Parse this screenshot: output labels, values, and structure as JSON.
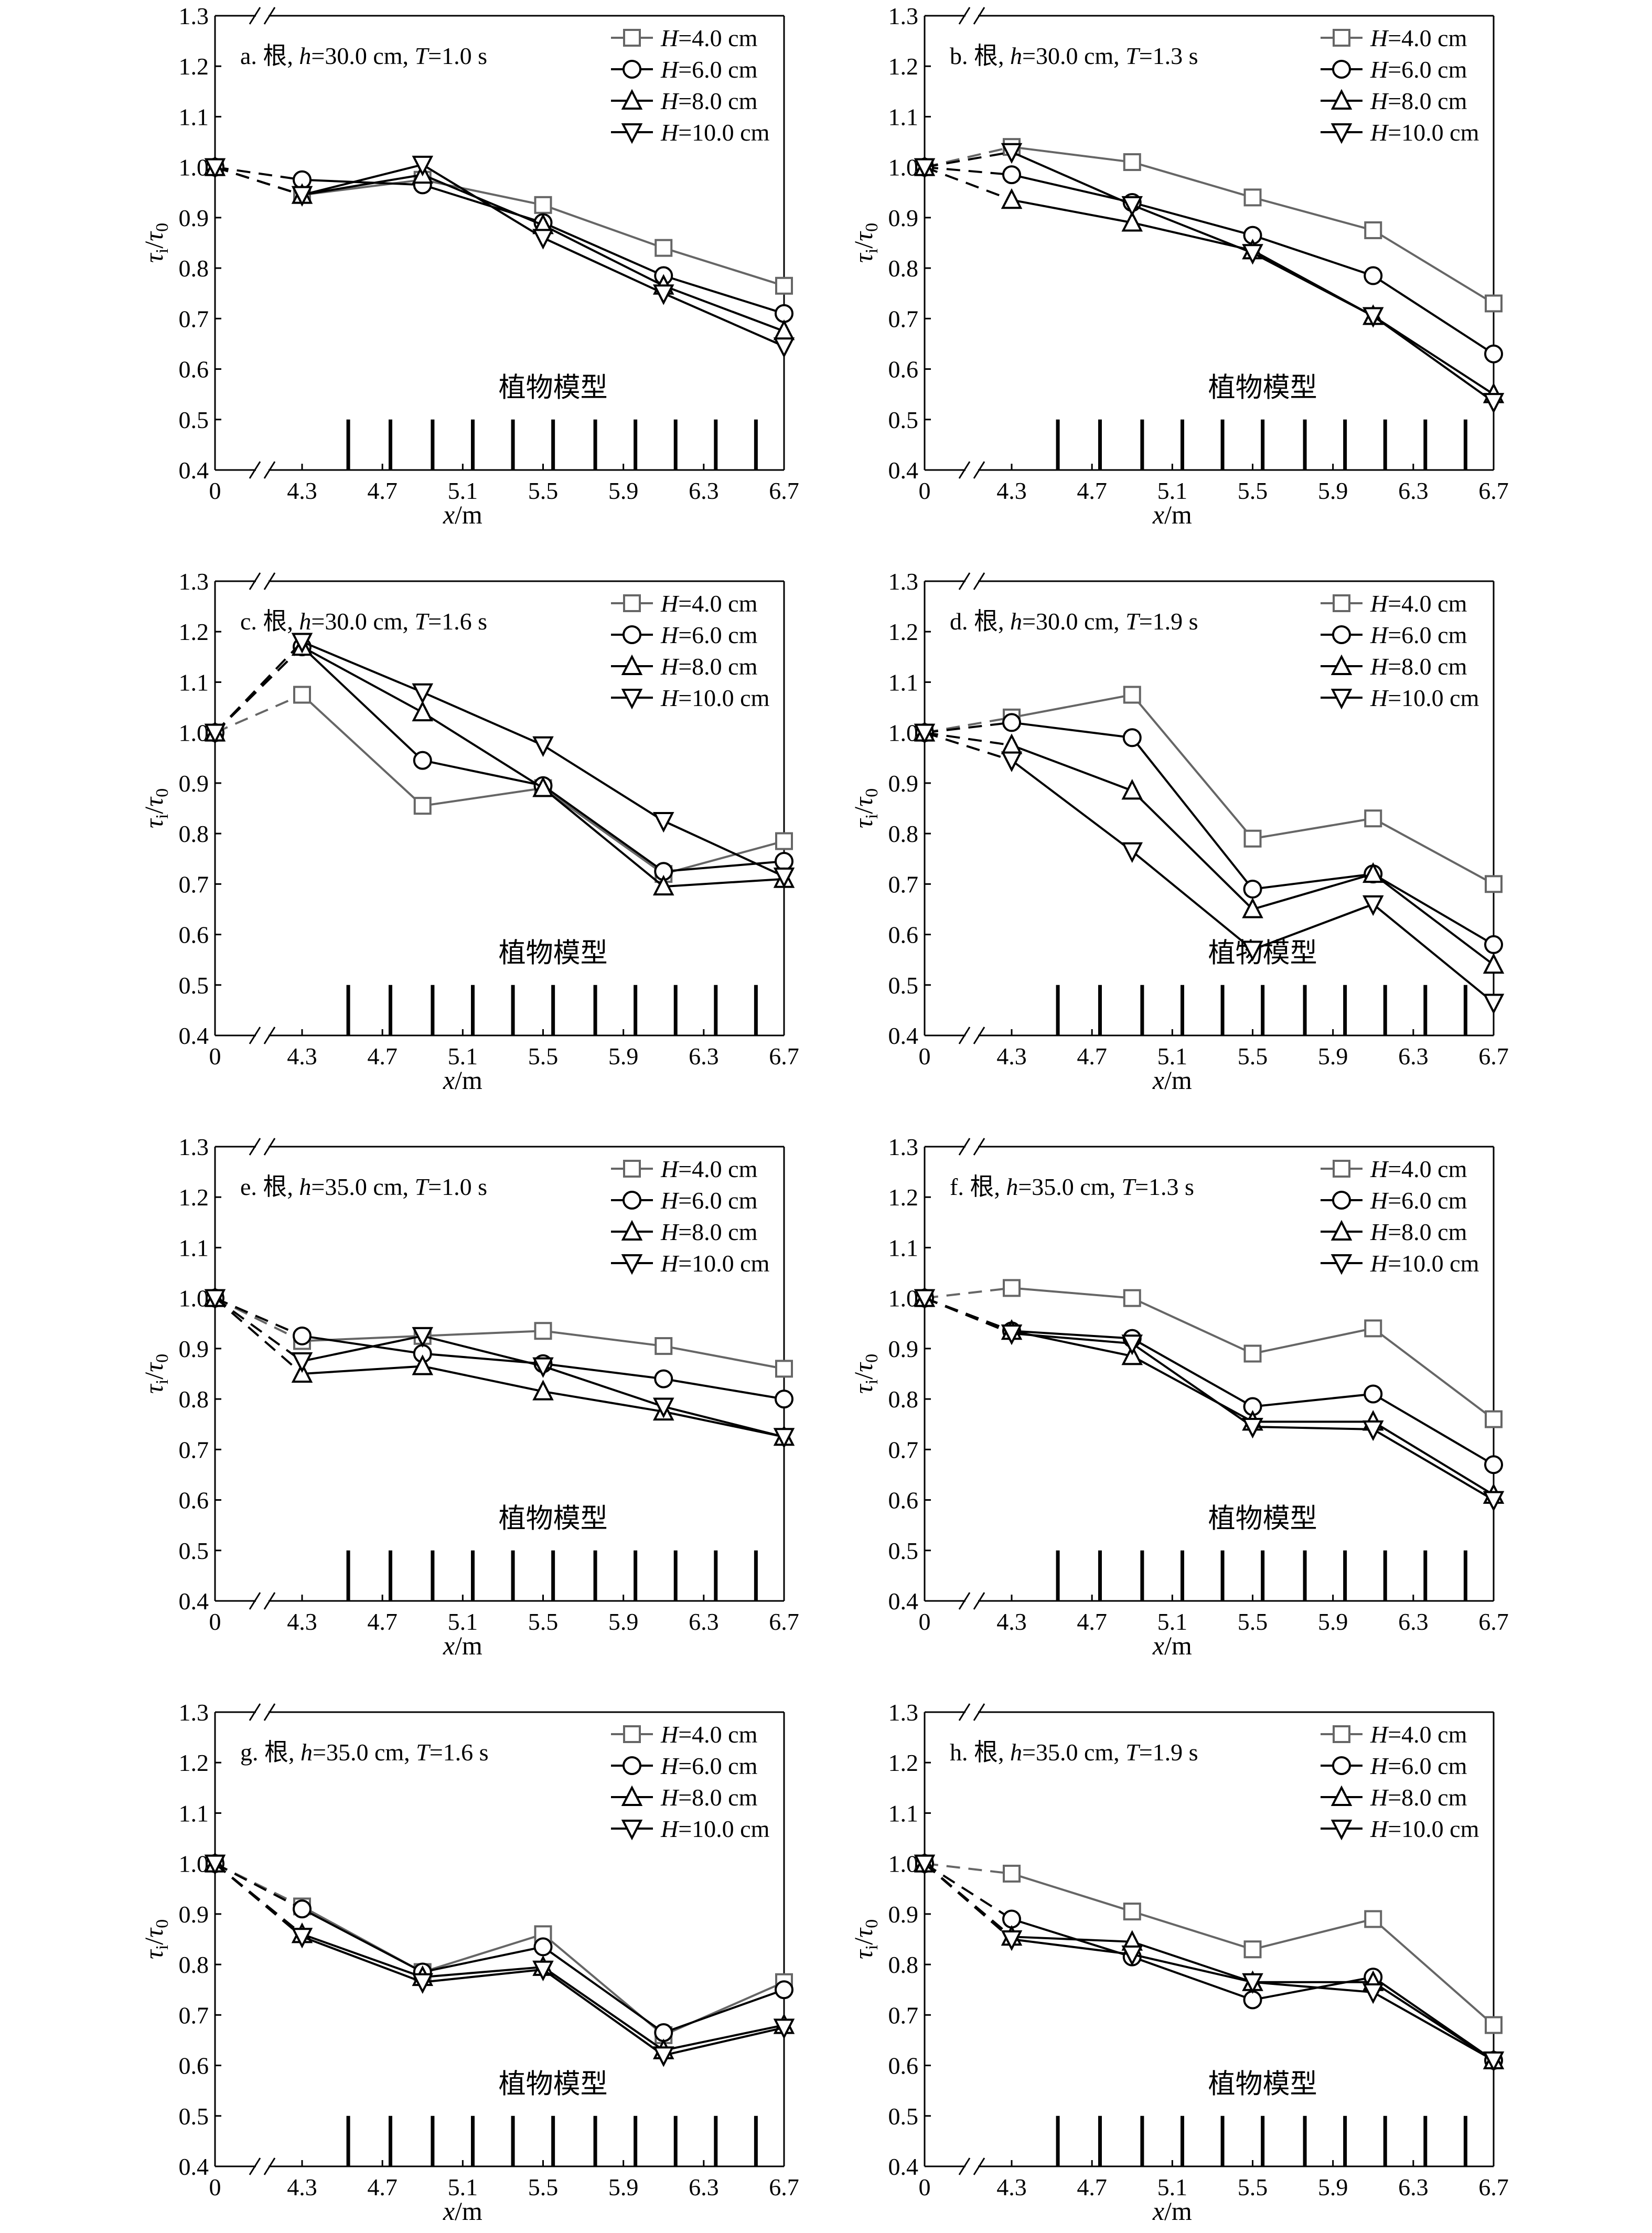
{
  "figure": {
    "name": "root-wave-shear-stress-panels"
  },
  "legend_prefix": "H",
  "vegetation_label": "植物模型",
  "style": {
    "series_colors": [
      "#666666",
      "#000000",
      "#000000",
      "#000000"
    ],
    "markers": [
      "square",
      "circle",
      "triangle-up",
      "triangle-down"
    ]
  },
  "chart_data": [
    {
      "type": "line",
      "panel": "a",
      "title": "a. 根, h=30.0 cm, T=1.0 s",
      "title_parts": {
        "prefix": "a. 根, ",
        "h_var": "h",
        "h_val": "=30.0 cm, ",
        "t_var": "T",
        "t_val": "=1.0 s"
      },
      "xlabel": "x/m",
      "ylabel": "τi/τ0",
      "x_ticks": [
        "0",
        "4.3",
        "4.7",
        "5.1",
        "5.5",
        "5.9",
        "6.3",
        "6.7"
      ],
      "y_ticks": [
        "0.4",
        "0.5",
        "0.6",
        "0.7",
        "0.8",
        "0.9",
        "1.0",
        "1.1",
        "1.2",
        "1.3"
      ],
      "ylim": [
        0.4,
        1.3
      ],
      "axis_break": true,
      "x": [
        0,
        4.3,
        4.9,
        5.5,
        6.1,
        6.7
      ],
      "series": [
        {
          "name": "=4.0 cm",
          "values": [
            1.0,
            0.945,
            0.975,
            0.925,
            0.84,
            0.765
          ]
        },
        {
          "name": "=6.0 cm",
          "values": [
            1.0,
            0.975,
            0.965,
            0.89,
            0.785,
            0.71
          ]
        },
        {
          "name": "=8.0 cm",
          "values": [
            1.0,
            0.945,
            0.985,
            0.885,
            0.765,
            0.675
          ]
        },
        {
          "name": "=10.0 cm",
          "values": [
            1.0,
            0.945,
            1.005,
            0.86,
            0.75,
            0.645
          ]
        }
      ]
    },
    {
      "type": "line",
      "panel": "b",
      "title": "b. 根, h=30.0 cm, T=1.3 s",
      "title_parts": {
        "prefix": "b. 根, ",
        "h_var": "h",
        "h_val": "=30.0 cm, ",
        "t_var": "T",
        "t_val": "=1.3 s"
      },
      "xlabel": "x/m",
      "ylabel": "τi/τ0",
      "x_ticks": [
        "0",
        "4.3",
        "4.7",
        "5.1",
        "5.5",
        "5.9",
        "6.3",
        "6.7"
      ],
      "y_ticks": [
        "0.4",
        "0.5",
        "0.6",
        "0.7",
        "0.8",
        "0.9",
        "1.0",
        "1.1",
        "1.2",
        "1.3"
      ],
      "ylim": [
        0.4,
        1.3
      ],
      "axis_break": true,
      "x": [
        0,
        4.3,
        4.9,
        5.5,
        6.1,
        6.7
      ],
      "series": [
        {
          "name": "=4.0 cm",
          "values": [
            1.0,
            1.04,
            1.01,
            0.94,
            0.875,
            0.73
          ]
        },
        {
          "name": "=6.0 cm",
          "values": [
            1.0,
            0.985,
            0.93,
            0.865,
            0.785,
            0.63
          ]
        },
        {
          "name": "=8.0 cm",
          "values": [
            1.0,
            0.935,
            0.89,
            0.835,
            0.705,
            0.55
          ]
        },
        {
          "name": "=10.0 cm",
          "values": [
            1.0,
            1.03,
            0.925,
            0.83,
            0.705,
            0.535
          ]
        }
      ]
    },
    {
      "type": "line",
      "panel": "c",
      "title": "c. 根, h=30.0 cm, T=1.6 s",
      "title_parts": {
        "prefix": "c. 根, ",
        "h_var": "h",
        "h_val": "=30.0 cm, ",
        "t_var": "T",
        "t_val": "=1.6 s"
      },
      "xlabel": "x/m",
      "ylabel": "τi/τ0",
      "x_ticks": [
        "0",
        "4.3",
        "4.7",
        "5.1",
        "5.5",
        "5.9",
        "6.3",
        "6.7"
      ],
      "y_ticks": [
        "0.4",
        "0.5",
        "0.6",
        "0.7",
        "0.8",
        "0.9",
        "1.0",
        "1.1",
        "1.2",
        "1.3"
      ],
      "ylim": [
        0.4,
        1.3
      ],
      "axis_break": true,
      "x": [
        0,
        4.3,
        4.9,
        5.5,
        6.1,
        6.7
      ],
      "series": [
        {
          "name": "=4.0 cm",
          "values": [
            1.0,
            1.075,
            0.855,
            0.89,
            0.72,
            0.785
          ]
        },
        {
          "name": "=6.0 cm",
          "values": [
            1.0,
            1.17,
            0.945,
            0.895,
            0.725,
            0.745
          ]
        },
        {
          "name": "=8.0 cm",
          "values": [
            1.0,
            1.17,
            1.04,
            0.89,
            0.695,
            0.71
          ]
        },
        {
          "name": "=10.0 cm",
          "values": [
            1.0,
            1.18,
            1.08,
            0.975,
            0.825,
            0.715
          ]
        }
      ]
    },
    {
      "type": "line",
      "panel": "d",
      "title": "d. 根, h=30.0 cm, T=1.9 s",
      "title_parts": {
        "prefix": "d. 根, ",
        "h_var": "h",
        "h_val": "=30.0 cm, ",
        "t_var": "T",
        "t_val": "=1.9 s"
      },
      "xlabel": "x/m",
      "ylabel": "τi/τ0",
      "x_ticks": [
        "0",
        "4.3",
        "4.7",
        "5.1",
        "5.5",
        "5.9",
        "6.3",
        "6.7"
      ],
      "y_ticks": [
        "0.4",
        "0.5",
        "0.6",
        "0.7",
        "0.8",
        "0.9",
        "1.0",
        "1.1",
        "1.2",
        "1.3"
      ],
      "ylim": [
        0.4,
        1.3
      ],
      "axis_break": true,
      "x": [
        0,
        4.3,
        4.9,
        5.5,
        6.1,
        6.7
      ],
      "series": [
        {
          "name": "=4.0 cm",
          "values": [
            1.0,
            1.03,
            1.075,
            0.79,
            0.83,
            0.7
          ]
        },
        {
          "name": "=6.0 cm",
          "values": [
            1.0,
            1.02,
            0.99,
            0.69,
            0.72,
            0.58
          ]
        },
        {
          "name": "=8.0 cm",
          "values": [
            1.0,
            0.975,
            0.885,
            0.65,
            0.72,
            0.54
          ]
        },
        {
          "name": "=10.0 cm",
          "values": [
            1.0,
            0.945,
            0.765,
            0.57,
            0.66,
            0.465
          ]
        }
      ]
    },
    {
      "type": "line",
      "panel": "e",
      "title": "e. 根, h=35.0 cm, T=1.0 s",
      "title_parts": {
        "prefix": "e. 根, ",
        "h_var": "h",
        "h_val": "=35.0 cm, ",
        "t_var": "T",
        "t_val": "=1.0 s"
      },
      "xlabel": "x/m",
      "ylabel": "τi/τ0",
      "x_ticks": [
        "0",
        "4.3",
        "4.7",
        "5.1",
        "5.5",
        "5.9",
        "6.3",
        "6.7"
      ],
      "y_ticks": [
        "0.4",
        "0.5",
        "0.6",
        "0.7",
        "0.8",
        "0.9",
        "1.0",
        "1.1",
        "1.2",
        "1.3"
      ],
      "ylim": [
        0.4,
        1.3
      ],
      "axis_break": true,
      "x": [
        0,
        4.3,
        4.9,
        5.5,
        6.1,
        6.7
      ],
      "series": [
        {
          "name": "=4.0 cm",
          "values": [
            1.0,
            0.915,
            0.925,
            0.935,
            0.905,
            0.86
          ]
        },
        {
          "name": "=6.0 cm",
          "values": [
            1.0,
            0.925,
            0.89,
            0.87,
            0.84,
            0.8
          ]
        },
        {
          "name": "=8.0 cm",
          "values": [
            1.0,
            0.85,
            0.865,
            0.815,
            0.775,
            0.725
          ]
        },
        {
          "name": "=10.0 cm",
          "values": [
            1.0,
            0.875,
            0.925,
            0.865,
            0.785,
            0.725
          ]
        }
      ]
    },
    {
      "type": "line",
      "panel": "f",
      "title": "f. 根, h=35.0 cm, T=1.3 s",
      "title_parts": {
        "prefix": "f. 根, ",
        "h_var": "h",
        "h_val": "=35.0 cm, ",
        "t_var": "T",
        "t_val": "=1.3 s"
      },
      "xlabel": "x/m",
      "ylabel": "τi/τ0",
      "x_ticks": [
        "0",
        "4.3",
        "4.7",
        "5.1",
        "5.5",
        "5.9",
        "6.3",
        "6.7"
      ],
      "y_ticks": [
        "0.4",
        "0.5",
        "0.6",
        "0.7",
        "0.8",
        "0.9",
        "1.0",
        "1.1",
        "1.2",
        "1.3"
      ],
      "ylim": [
        0.4,
        1.3
      ],
      "axis_break": true,
      "x": [
        0,
        4.3,
        4.9,
        5.5,
        6.1,
        6.7
      ],
      "series": [
        {
          "name": "=4.0 cm",
          "values": [
            1.0,
            1.02,
            1.0,
            0.89,
            0.94,
            0.76
          ]
        },
        {
          "name": "=6.0 cm",
          "values": [
            1.0,
            0.935,
            0.92,
            0.785,
            0.81,
            0.67
          ]
        },
        {
          "name": "=8.0 cm",
          "values": [
            1.0,
            0.935,
            0.885,
            0.755,
            0.755,
            0.61
          ]
        },
        {
          "name": "=10.0 cm",
          "values": [
            1.0,
            0.93,
            0.91,
            0.745,
            0.74,
            0.6
          ]
        }
      ]
    },
    {
      "type": "line",
      "panel": "g",
      "title": "g. 根, h=35.0 cm, T=1.6 s",
      "title_parts": {
        "prefix": "g. 根, ",
        "h_var": "h",
        "h_val": "=35.0 cm, ",
        "t_var": "T",
        "t_val": "=1.6 s"
      },
      "xlabel": "x/m",
      "ylabel": "τi/τ0",
      "x_ticks": [
        "0",
        "4.3",
        "4.7",
        "5.1",
        "5.5",
        "5.9",
        "6.3",
        "6.7"
      ],
      "y_ticks": [
        "0.4",
        "0.5",
        "0.6",
        "0.7",
        "0.8",
        "0.9",
        "1.0",
        "1.1",
        "1.2",
        "1.3"
      ],
      "ylim": [
        0.4,
        1.3
      ],
      "axis_break": true,
      "x": [
        0,
        4.3,
        4.9,
        5.5,
        6.1,
        6.7
      ],
      "series": [
        {
          "name": "=4.0 cm",
          "values": [
            1.0,
            0.915,
            0.785,
            0.86,
            0.66,
            0.765
          ]
        },
        {
          "name": "=6.0 cm",
          "values": [
            1.0,
            0.91,
            0.785,
            0.835,
            0.665,
            0.75
          ]
        },
        {
          "name": "=8.0 cm",
          "values": [
            1.0,
            0.86,
            0.775,
            0.795,
            0.63,
            0.68
          ]
        },
        {
          "name": "=10.0 cm",
          "values": [
            1.0,
            0.855,
            0.765,
            0.79,
            0.62,
            0.675
          ]
        }
      ]
    },
    {
      "type": "line",
      "panel": "h",
      "title": "h. 根, h=35.0 cm, T=1.9 s",
      "title_parts": {
        "prefix": "h. 根, ",
        "h_var": "h",
        "h_val": "=35.0 cm, ",
        "t_var": "T",
        "t_val": "=1.9 s"
      },
      "xlabel": "x/m",
      "ylabel": "τi/τ0",
      "x_ticks": [
        "0",
        "4.3",
        "4.7",
        "5.1",
        "5.5",
        "5.9",
        "6.3",
        "6.7"
      ],
      "y_ticks": [
        "0.4",
        "0.5",
        "0.6",
        "0.7",
        "0.8",
        "0.9",
        "1.0",
        "1.1",
        "1.2",
        "1.3"
      ],
      "ylim": [
        0.4,
        1.3
      ],
      "axis_break": true,
      "x": [
        0,
        4.3,
        4.9,
        5.5,
        6.1,
        6.7
      ],
      "series": [
        {
          "name": "=4.0 cm",
          "values": [
            1.0,
            0.98,
            0.905,
            0.83,
            0.89,
            0.68
          ]
        },
        {
          "name": "=6.0 cm",
          "values": [
            1.0,
            0.89,
            0.815,
            0.73,
            0.775,
            0.61
          ]
        },
        {
          "name": "=8.0 cm",
          "values": [
            1.0,
            0.855,
            0.845,
            0.765,
            0.765,
            0.61
          ]
        },
        {
          "name": "=10.0 cm",
          "values": [
            1.0,
            0.85,
            0.82,
            0.765,
            0.745,
            0.61
          ]
        }
      ]
    }
  ]
}
